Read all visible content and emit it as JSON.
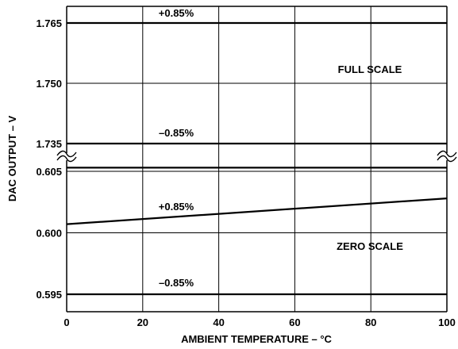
{
  "chart_data": {
    "type": "line",
    "xlabel": "AMBIENT TEMPERATURE – °C",
    "ylabel": "DAC OUTPUT – V",
    "x_ticks": [
      "0",
      "20",
      "40",
      "60",
      "80",
      "100"
    ],
    "xlim": [
      0,
      100
    ],
    "axis_break": true,
    "grid": true,
    "panels": [
      {
        "name": "FULL SCALE",
        "ylim": [
          1.733,
          1.768
        ],
        "y_ticks": [
          "1.765",
          "1.750",
          "1.735"
        ],
        "series": [
          {
            "label": "+0.85%",
            "x": [
              0,
              100
            ],
            "y": [
              1.765,
              1.765
            ]
          },
          {
            "label": "–0.85%",
            "x": [
              0,
              100
            ],
            "y": [
              1.735,
              1.735
            ]
          }
        ]
      },
      {
        "name": "ZERO SCALE",
        "ylim": [
          0.5945,
          0.6055
        ],
        "y_ticks": [
          "0.605",
          "0.600",
          "0.595"
        ],
        "series": [
          {
            "label": "+0.85%",
            "x": [
              0,
              100
            ],
            "y": [
              0.6053,
              0.6053
            ]
          },
          {
            "label": "",
            "x": [
              0,
              100
            ],
            "y": [
              0.6007,
              0.6028
            ]
          },
          {
            "label": "–0.85%",
            "x": [
              0,
              100
            ],
            "y": [
              0.595,
              0.595
            ]
          }
        ]
      }
    ]
  }
}
